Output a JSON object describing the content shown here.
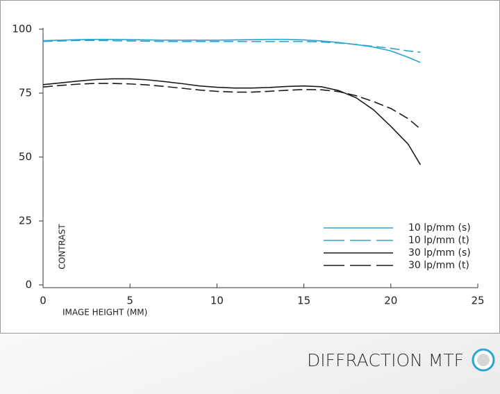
{
  "chart_data": {
    "type": "line",
    "x": [
      0,
      1,
      2,
      3,
      4,
      5,
      6,
      7,
      8,
      9,
      10,
      11,
      12,
      13,
      14,
      15,
      16,
      17,
      18,
      19,
      20,
      21,
      21.7
    ],
    "series": [
      {
        "name": "10 lp/mm (s)",
        "color": "#2aa6cc",
        "dash": false,
        "values": [
          95.5,
          95.7,
          95.9,
          96,
          96,
          95.9,
          95.8,
          95.7,
          95.7,
          95.7,
          95.7,
          95.8,
          95.9,
          96,
          96,
          95.8,
          95.4,
          94.8,
          94,
          93,
          91.5,
          89,
          87
        ]
      },
      {
        "name": "10 lp/mm (t)",
        "color": "#2aa6cc",
        "dash": true,
        "values": [
          95.2,
          95.4,
          95.6,
          95.6,
          95.5,
          95.4,
          95.3,
          95.2,
          95.2,
          95.2,
          95.2,
          95.2,
          95.2,
          95.2,
          95.2,
          95.2,
          95,
          94.6,
          94,
          93.3,
          92.5,
          91.5,
          91
        ]
      },
      {
        "name": "30 lp/mm (s)",
        "color": "#1a1a1a",
        "dash": false,
        "values": [
          78.3,
          79,
          79.7,
          80.3,
          80.6,
          80.6,
          80.2,
          79.5,
          78.7,
          77.8,
          77.3,
          77,
          77,
          77.2,
          77.6,
          77.8,
          77.5,
          76,
          73.2,
          68.5,
          62,
          55,
          47
        ]
      },
      {
        "name": "30 lp/mm (t)",
        "color": "#1a1a1a",
        "dash": true,
        "values": [
          77.4,
          78,
          78.5,
          78.8,
          78.8,
          78.6,
          78.2,
          77.6,
          76.9,
          76.2,
          75.7,
          75.4,
          75.4,
          75.7,
          76.1,
          76.4,
          76.3,
          75.6,
          74,
          71.7,
          69,
          65,
          61
        ]
      }
    ],
    "xlim": [
      0,
      25
    ],
    "xticks": [
      0,
      5,
      10,
      15,
      20,
      25
    ],
    "ylim": [
      0,
      100
    ],
    "yticks": [
      0,
      25,
      50,
      75,
      100
    ],
    "x_label": "IMAGE HEIGHT (MM)",
    "y_label": "CONTRAST",
    "caption": "DIFFRACTION MTF"
  }
}
